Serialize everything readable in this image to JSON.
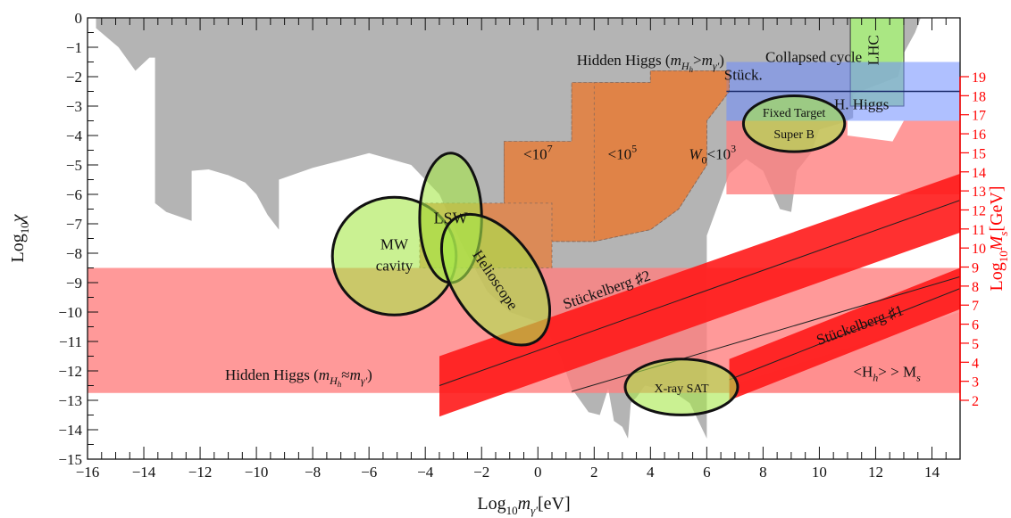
{
  "chart_data": {
    "type": "area",
    "xlabel": "Log",
    "xlabel_sub": "10",
    "xlabel_var": "m",
    "xlabel_var_sub": "γ'",
    "xlabel_unit": "[eV]",
    "ylabel": "Log",
    "ylabel_sub": "10",
    "ylabel_var": "χ",
    "y2label": "Log",
    "y2label_sub": "10",
    "y2label_var": "M",
    "y2label_var_sub": "s",
    "y2label_unit": "[GeV]",
    "xlim": [
      -16,
      15
    ],
    "ylim": [
      -15,
      0
    ],
    "y2lim": [
      2,
      19
    ],
    "x_ticks": [
      -16,
      -14,
      -12,
      -10,
      -8,
      -6,
      -4,
      -2,
      0,
      2,
      4,
      6,
      8,
      10,
      12,
      14
    ],
    "y_ticks": [
      0,
      -1,
      -2,
      -3,
      -4,
      -5,
      -6,
      -7,
      -8,
      -9,
      -10,
      -11,
      -12,
      -13,
      -14,
      -15
    ],
    "y2_ticks": [
      2,
      3,
      4,
      5,
      6,
      7,
      8,
      9,
      10,
      11,
      12,
      13,
      14,
      15,
      16,
      17,
      18,
      19
    ],
    "colors": {
      "excluded_gray": "#b4b4b4",
      "hidden_higgs_band": "#ff7f7f",
      "stueckelberg_band": "#ff1a1a",
      "orange_region": "#e67e3c",
      "lhc_green": "#a8f07a",
      "blue_band": "#6e8cff",
      "ellipse_fill": "#a6e84a",
      "right_axis": "#ff0000"
    },
    "regions": [
      {
        "name": "Excluded (gray)",
        "color": "excluded_gray",
        "boundary": [
          [
            -15.7,
            0
          ],
          [
            -15.7,
            -0.35
          ],
          [
            -14.9,
            -1.0
          ],
          [
            -14.3,
            -1.8
          ],
          [
            -13.8,
            -1.35
          ],
          [
            -13.6,
            -1.35
          ],
          [
            -13.6,
            -6.3
          ],
          [
            -13.2,
            -6.6
          ],
          [
            -12.3,
            -6.9
          ],
          [
            -12.3,
            -5.2
          ],
          [
            -11.7,
            -5.15
          ],
          [
            -11.0,
            -5.35
          ],
          [
            -10.4,
            -5.6
          ],
          [
            -10.0,
            -6.0
          ],
          [
            -9.6,
            -6.7
          ],
          [
            -9.2,
            -7.2
          ],
          [
            -9.2,
            -5.5
          ],
          [
            -8.0,
            -5.1
          ],
          [
            -6.0,
            -4.6
          ],
          [
            -4.5,
            -5.0
          ],
          [
            -3.5,
            -6.0
          ],
          [
            -2.7,
            -7.7
          ],
          [
            -1.8,
            -9.3
          ],
          [
            -1.0,
            -10.0
          ],
          [
            0.2,
            -10.4
          ],
          [
            0.8,
            -11.5
          ],
          [
            1.2,
            -12.6
          ],
          [
            1.8,
            -13.4
          ],
          [
            2.2,
            -13.5
          ],
          [
            2.5,
            -12.6
          ],
          [
            2.7,
            -13.7
          ],
          [
            3.0,
            -13.9
          ],
          [
            3.2,
            -14.3
          ],
          [
            3.3,
            -13.1
          ],
          [
            3.5,
            -12.9
          ],
          [
            3.8,
            -12.5
          ],
          [
            4.8,
            -12.7
          ],
          [
            5.4,
            -13.1
          ],
          [
            6.0,
            -14.3
          ],
          [
            6.0,
            -7.4
          ],
          [
            6.8,
            -5.3
          ],
          [
            7.4,
            -4.8
          ],
          [
            8.0,
            -5.2
          ],
          [
            8.6,
            -6.5
          ],
          [
            9.0,
            -6.6
          ],
          [
            9.2,
            -5.2
          ],
          [
            9.7,
            -4.6
          ],
          [
            10.0,
            -3.8
          ],
          [
            10.7,
            -3.6
          ],
          [
            11.2,
            -3.4
          ],
          [
            11.2,
            -2.6
          ],
          [
            12.8,
            -2.0
          ],
          [
            13.0,
            -1.2
          ],
          [
            13.4,
            -0.5
          ],
          [
            13.6,
            0
          ],
          [
            -15.7,
            0
          ]
        ]
      },
      {
        "name": "Hidden Higgs (m_Hh≈m_γ') band",
        "color": "hidden_higgs_band",
        "boundary": [
          [
            -16,
            -8.5
          ],
          [
            15,
            -8.5
          ],
          [
            15,
            -12.75
          ],
          [
            -16,
            -12.75
          ]
        ]
      },
      {
        "name": "Upper-right red region",
        "color": "hidden_higgs_band",
        "boundary": [
          [
            6.7,
            -3.5
          ],
          [
            11.0,
            -3.5
          ],
          [
            11.0,
            -4.0
          ],
          [
            12.6,
            -4.2
          ],
          [
            13.0,
            -3.5
          ],
          [
            15,
            -3.5
          ],
          [
            15,
            -6.0
          ],
          [
            6.7,
            -6.0
          ]
        ]
      },
      {
        "name": "<H_h> > M_s light region",
        "color": "hidden_higgs_band",
        "boundary": [
          [
            15,
            -10.0
          ],
          [
            6.8,
            -12.5
          ],
          [
            6.8,
            -12.75
          ],
          [
            15,
            -12.75
          ]
        ]
      },
      {
        "name": "Stückelberg #2 band",
        "color": "stueckelberg_band",
        "boundary": [
          [
            -3.5,
            -11.5
          ],
          [
            15,
            -5.3
          ],
          [
            15,
            -7.3
          ],
          [
            -3.5,
            -13.55
          ]
        ]
      },
      {
        "name": "Stückelberg #1 band",
        "color": "stueckelberg_band",
        "boundary": [
          [
            6.8,
            -11.6
          ],
          [
            15,
            -8.5
          ],
          [
            15,
            -9.9
          ],
          [
            6.8,
            -13.0
          ]
        ]
      },
      {
        "name": "W0<10^7 region",
        "color": "orange_region",
        "boundary": [
          [
            -4.2,
            -6.3
          ],
          [
            -1.2,
            -6.3
          ],
          [
            -1.2,
            -4.2
          ],
          [
            1.2,
            -4.2
          ],
          [
            1.2,
            -2.2
          ],
          [
            4.0,
            -2.2
          ],
          [
            4.0,
            -1.8
          ],
          [
            6.8,
            -1.8
          ],
          [
            6.8,
            -2.5
          ],
          [
            6.0,
            -3.5
          ],
          [
            6.0,
            -5.0
          ],
          [
            5.0,
            -6.5
          ],
          [
            4.0,
            -7.2
          ],
          [
            2.0,
            -7.6
          ],
          [
            0.5,
            -7.6
          ],
          [
            0.5,
            -8.5
          ],
          [
            -4.2,
            -8.5
          ]
        ]
      },
      {
        "name": "LHC",
        "color": "lhc_green",
        "boundary": [
          [
            11.1,
            0
          ],
          [
            13.0,
            0
          ],
          [
            13.0,
            -3.0
          ],
          [
            11.1,
            -3.0
          ]
        ]
      },
      {
        "name": "Blue band (Stück. / H. Higgs / Fixed Target)",
        "color": "blue_band",
        "boundary": [
          [
            6.7,
            -1.5
          ],
          [
            15,
            -1.5
          ],
          [
            15,
            -3.5
          ],
          [
            6.7,
            -3.5
          ]
        ]
      }
    ],
    "lines": [
      {
        "name": "Stückelberg #2 centre",
        "points": [
          [
            -3.5,
            -12.5
          ],
          [
            15,
            -6.2
          ]
        ]
      },
      {
        "name": "Stückelberg #1 centre",
        "points": [
          [
            6.8,
            -12.3
          ],
          [
            15,
            -9.2
          ]
        ]
      },
      {
        "name": "Lower boundary line",
        "points": [
          [
            1.2,
            -12.7
          ],
          [
            15,
            -8.8
          ]
        ]
      },
      {
        "name": "H. Higgs line",
        "points": [
          [
            6.7,
            -2.5
          ],
          [
            15,
            -2.5
          ]
        ]
      }
    ],
    "ellipses": [
      {
        "label": "MW",
        "label2": "cavity",
        "cx": -5.1,
        "cy": -8.1,
        "rx": 2.2,
        "ry": 2.0,
        "angle": 0
      },
      {
        "label": "LSW",
        "cx": -3.1,
        "cy": -6.8,
        "rx": 1.1,
        "ry": 2.2,
        "angle": 0
      },
      {
        "label": "Helioscope",
        "cx": -1.5,
        "cy": -8.9,
        "rx": 1.5,
        "ry": 2.5,
        "angle": -34
      },
      {
        "label": "Fixed Target",
        "label2": "Super B",
        "cx": 9.1,
        "cy": -3.6,
        "rx": 1.8,
        "ry": 0.95,
        "angle": 0
      },
      {
        "label": "X-ray SAT",
        "cx": 5.1,
        "cy": -12.55,
        "rx": 2.0,
        "ry": 0.95,
        "angle": 0
      }
    ],
    "annotations": [
      {
        "text_parts": [
          "Hidden Higgs (",
          "m",
          "H",
          "h",
          ">",
          "m",
          "γ'",
          ")"
        ],
        "x": 4.0,
        "y": -1.6
      },
      {
        "text": "Collapsed cycle",
        "x": 9.8,
        "y": -1.5
      },
      {
        "text": "Stück.",
        "x": 7.3,
        "y": -2.1
      },
      {
        "text": "H. Higgs",
        "x": 11.5,
        "y": -3.1
      },
      {
        "text": "LHC",
        "x": 12.1,
        "y": -1.1,
        "rotate": -90
      },
      {
        "text": "<10",
        "sup": "7",
        "x": 0.0,
        "y": -4.8
      },
      {
        "text": "<10",
        "sup": "5",
        "x": 3.0,
        "y": -4.8
      },
      {
        "text_parts": [
          "W",
          "0",
          "<10",
          "3"
        ],
        "x": 6.2,
        "y": -4.8
      },
      {
        "text": "Stückelberg ♯2",
        "x": 2.5,
        "y": -9.4,
        "rotate": -19
      },
      {
        "text": "Stückelberg ♯1",
        "x": 11.5,
        "y": -10.6,
        "rotate": -20
      },
      {
        "text_parts": [
          "Hidden Higgs (",
          "m",
          "H",
          "h",
          "≈",
          "m",
          "γ'",
          ")"
        ],
        "x": -8.5,
        "y": -12.3
      },
      {
        "text_parts": [
          "<H",
          "h",
          "> > M",
          "s"
        ],
        "x": 12.4,
        "y": -12.2
      }
    ]
  }
}
